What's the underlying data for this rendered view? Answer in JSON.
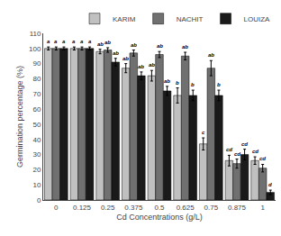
{
  "chart_data": {
    "type": "bar",
    "categories": [
      "0",
      "0.125",
      "0.25",
      "0.375",
      "0.5",
      "0.625",
      "0.75",
      "0.875",
      "1"
    ],
    "series": [
      {
        "name": "KARIM",
        "color": "#c0c0c0",
        "values": [
          100,
          100,
          98,
          87,
          82,
          69,
          37,
          26,
          26
        ],
        "errors": [
          1.0,
          1.0,
          1.5,
          3.0,
          3.5,
          5.0,
          4.0,
          3.5,
          2.5
        ],
        "labels": [
          "a",
          "a",
          "ab",
          "ab",
          "ab",
          "b",
          "c",
          "cd",
          "cd"
        ]
      },
      {
        "name": "NACHIT",
        "color": "#707070",
        "values": [
          100,
          100,
          99,
          97,
          96,
          95,
          87,
          24,
          21
        ],
        "errors": [
          1.0,
          1.0,
          1.5,
          2.0,
          2.0,
          2.5,
          5.0,
          3.0,
          2.5
        ],
        "labels": [
          "a",
          "a",
          "ab",
          "ab",
          "ab",
          "ab",
          "ab",
          "cd",
          "cd"
        ]
      },
      {
        "name": "LOUIZA",
        "color": "#1a1a1a",
        "values": [
          100,
          100,
          91,
          82,
          72,
          69,
          69,
          30,
          5
        ],
        "errors": [
          1.0,
          1.0,
          2.5,
          2.5,
          3.0,
          3.5,
          3.5,
          3.5,
          1.5
        ],
        "labels": [
          "a",
          "a",
          "ab",
          "ab",
          "ab",
          "b",
          "b",
          "cd",
          "d"
        ]
      }
    ],
    "xlabel": "Cd Concentrations (g/L)",
    "ylabel": "Germination percentage (%)",
    "ylim": [
      0,
      110
    ],
    "yticks": [
      0,
      10,
      20,
      30,
      40,
      50,
      60,
      70,
      80,
      90,
      100,
      110
    ],
    "legend": "upper right",
    "grid": false
  }
}
